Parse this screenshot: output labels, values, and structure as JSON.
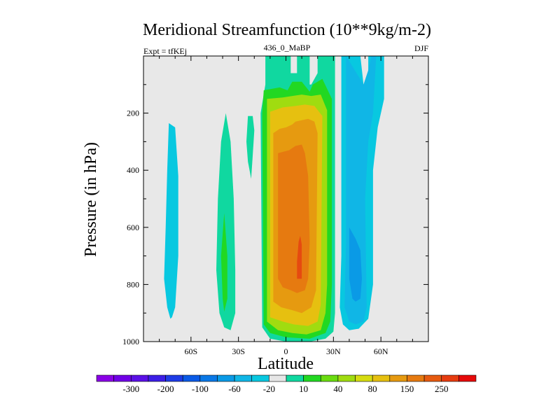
{
  "chart_data": {
    "type": "heatmap",
    "title": "Meridional Streamfunction (10**9kg/m-2)",
    "subtitle_left": "Expt = tfKEj",
    "subtitle_center": "436_0_MaBP",
    "subtitle_right": "DJF",
    "xlabel": "Latitude",
    "ylabel": "Pressure (in hPa)",
    "xlim": [
      -90,
      90
    ],
    "ylim": [
      1000,
      0
    ],
    "x_ticks": [
      {
        "value": -60,
        "label": "60S"
      },
      {
        "value": -30,
        "label": "30S"
      },
      {
        "value": 0,
        "label": "0"
      },
      {
        "value": 30,
        "label": "30N"
      },
      {
        "value": 60,
        "label": "60N"
      }
    ],
    "y_ticks": [
      {
        "value": 200,
        "label": "200"
      },
      {
        "value": 400,
        "label": "400"
      },
      {
        "value": 600,
        "label": "600"
      },
      {
        "value": 800,
        "label": "800"
      },
      {
        "value": 1000,
        "label": "1000"
      }
    ],
    "background_color": "#e8e8e8",
    "colorbar": {
      "colors": [
        "#8a00e6",
        "#7000e6",
        "#5a10e6",
        "#3c1ee6",
        "#1e3ce6",
        "#0a5ae6",
        "#0a78e6",
        "#0a9ae6",
        "#10b6e6",
        "#08c8e0",
        "#e6e6e6",
        "#10d8a0",
        "#22d822",
        "#6adc10",
        "#a0dc10",
        "#d6dc10",
        "#e6c010",
        "#e69a10",
        "#e67a10",
        "#e65a10",
        "#e63c10",
        "#e60a0a"
      ],
      "labels": [
        {
          "after_index": 1,
          "label": "-300"
        },
        {
          "after_index": 3,
          "label": "-200"
        },
        {
          "after_index": 5,
          "label": "-100"
        },
        {
          "after_index": 7,
          "label": "-60"
        },
        {
          "after_index": 9,
          "label": "-20"
        },
        {
          "after_index": 11,
          "label": "10"
        },
        {
          "after_index": 13,
          "label": "40"
        },
        {
          "after_index": 15,
          "label": "80"
        },
        {
          "after_index": 17,
          "label": "150"
        },
        {
          "after_index": 19,
          "label": "250"
        }
      ]
    },
    "contour_regions": [
      {
        "name": "sh-high-lat-cell",
        "color": "#08c8e0",
        "points": [
          [
            -74,
            235
          ],
          [
            -70,
            250
          ],
          [
            -68,
            420
          ],
          [
            -68,
            700
          ],
          [
            -70,
            880
          ],
          [
            -72,
            915
          ],
          [
            -73,
            920
          ],
          [
            -75,
            880
          ],
          [
            -77,
            780
          ],
          [
            -76,
            600
          ],
          [
            -75,
            400
          ]
        ]
      },
      {
        "name": "sh-mid-lat-cell-outer",
        "color": "#10d8a0",
        "points": [
          [
            -38,
            200
          ],
          [
            -35,
            300
          ],
          [
            -33,
            500
          ],
          [
            -32,
            750
          ],
          [
            -32,
            900
          ],
          [
            -35,
            960
          ],
          [
            -39,
            950
          ],
          [
            -42,
            900
          ],
          [
            -44,
            750
          ],
          [
            -43,
            500
          ],
          [
            -41,
            300
          ]
        ]
      },
      {
        "name": "sh-mid-lat-cell-inner",
        "color": "#22d822",
        "points": [
          [
            -39,
            550
          ],
          [
            -37,
            700
          ],
          [
            -37,
            850
          ],
          [
            -39,
            895
          ],
          [
            -40,
            850
          ],
          [
            -41,
            700
          ]
        ]
      },
      {
        "name": "sh-small-upper-cell",
        "color": "#10d8a0",
        "points": [
          [
            -24,
            210
          ],
          [
            -21,
            210
          ],
          [
            -20,
            260
          ],
          [
            -21,
            350
          ],
          [
            -22,
            430
          ],
          [
            -24,
            370
          ],
          [
            -25,
            300
          ]
        ]
      },
      {
        "name": "hadley-outer",
        "color": "#10d8a0",
        "points": [
          [
            -13,
            0
          ],
          [
            -13,
            100
          ],
          [
            -16,
            200
          ],
          [
            -15,
            950
          ],
          [
            -10,
            990
          ],
          [
            0,
            1000
          ],
          [
            15,
            1000
          ],
          [
            25,
            990
          ],
          [
            30,
            965
          ],
          [
            31,
            900
          ],
          [
            31,
            0
          ],
          [
            20,
            0
          ],
          [
            20,
            60
          ],
          [
            16,
            100
          ],
          [
            15,
            100
          ],
          [
            15,
            0
          ],
          [
            7,
            0
          ],
          [
            7,
            60
          ],
          [
            3,
            60
          ],
          [
            3,
            0
          ]
        ]
      },
      {
        "name": "hadley-40",
        "color": "#22d822",
        "points": [
          [
            -14,
            120
          ],
          [
            -15,
            200
          ],
          [
            -14,
            940
          ],
          [
            -10,
            970
          ],
          [
            0,
            985
          ],
          [
            15,
            990
          ],
          [
            25,
            970
          ],
          [
            28,
            930
          ],
          [
            29,
            800
          ],
          [
            29,
            150
          ],
          [
            23,
            80
          ],
          [
            17,
            100
          ],
          [
            15,
            125
          ],
          [
            10,
            90
          ],
          [
            4,
            90
          ],
          [
            1,
            120
          ],
          [
            -4,
            110
          ]
        ]
      },
      {
        "name": "hadley-80",
        "color": "#a0dc10",
        "points": [
          [
            -12,
            150
          ],
          [
            -12,
            930
          ],
          [
            -5,
            960
          ],
          [
            4,
            970
          ],
          [
            13,
            975
          ],
          [
            22,
            960
          ],
          [
            25,
            900
          ],
          [
            26,
            800
          ],
          [
            26,
            190
          ],
          [
            22,
            135
          ],
          [
            16,
            140
          ],
          [
            10,
            135
          ],
          [
            4,
            140
          ],
          [
            -2,
            145
          ]
        ]
      },
      {
        "name": "hadley-150",
        "color": "#e6c010",
        "points": [
          [
            -10,
            195
          ],
          [
            -10,
            915
          ],
          [
            -2,
            930
          ],
          [
            5,
            940
          ],
          [
            14,
            945
          ],
          [
            20,
            930
          ],
          [
            22,
            870
          ],
          [
            23,
            210
          ],
          [
            18,
            175
          ],
          [
            12,
            170
          ],
          [
            6,
            175
          ],
          [
            -2,
            180
          ]
        ]
      },
      {
        "name": "hadley-250",
        "color": "#e69a10",
        "points": [
          [
            -8,
            270
          ],
          [
            -8,
            860
          ],
          [
            -3,
            880
          ],
          [
            4,
            890
          ],
          [
            10,
            900
          ],
          [
            16,
            880
          ],
          [
            19,
            820
          ],
          [
            20,
            270
          ],
          [
            18,
            230
          ],
          [
            14,
            220
          ],
          [
            10,
            225
          ],
          [
            6,
            230
          ],
          [
            4,
            240
          ],
          [
            0,
            250
          ],
          [
            -4,
            255
          ]
        ]
      },
      {
        "name": "hadley-300",
        "color": "#e67a10",
        "points": [
          [
            -5,
            340
          ],
          [
            -5,
            780
          ],
          [
            -2,
            810
          ],
          [
            3,
            820
          ],
          [
            7,
            830
          ],
          [
            12,
            820
          ],
          [
            14,
            780
          ],
          [
            15,
            650
          ],
          [
            14,
            420
          ],
          [
            12,
            340
          ],
          [
            10,
            310
          ],
          [
            6,
            315
          ],
          [
            2,
            330
          ]
        ]
      },
      {
        "name": "hadley-core",
        "color": "#e64a10",
        "points": [
          [
            8,
            650
          ],
          [
            7,
            720
          ],
          [
            7,
            780
          ],
          [
            10,
            780
          ],
          [
            10,
            660
          ],
          [
            9,
            630
          ]
        ]
      },
      {
        "name": "nh-ferrel-outer",
        "color": "#08c8e0",
        "points": [
          [
            35,
            0
          ],
          [
            35,
            700
          ],
          [
            34,
            880
          ],
          [
            36,
            940
          ],
          [
            40,
            960
          ],
          [
            46,
            955
          ],
          [
            52,
            920
          ],
          [
            55,
            800
          ],
          [
            55,
            400
          ],
          [
            58,
            250
          ],
          [
            62,
            150
          ],
          [
            62,
            0
          ],
          [
            52,
            0
          ],
          [
            52,
            100
          ],
          [
            50,
            150
          ],
          [
            47,
            0
          ]
        ]
      },
      {
        "name": "nh-ferrel-inner",
        "color": "#10b6e6",
        "points": [
          [
            38,
            0
          ],
          [
            38,
            650
          ],
          [
            37,
            880
          ],
          [
            40,
            930
          ],
          [
            44,
            940
          ],
          [
            49,
            930
          ],
          [
            51,
            880
          ],
          [
            50,
            500
          ],
          [
            52,
            300
          ],
          [
            55,
            200
          ],
          [
            57,
            0
          ],
          [
            54,
            0
          ],
          [
            52,
            50
          ],
          [
            49,
            100
          ]
        ]
      },
      {
        "name": "nh-ferrel-core",
        "color": "#0a9ae6",
        "points": [
          [
            40,
            600
          ],
          [
            40,
            780
          ],
          [
            42,
            850
          ],
          [
            44,
            860
          ],
          [
            47,
            850
          ],
          [
            48,
            780
          ],
          [
            47,
            680
          ],
          [
            44,
            640
          ],
          [
            42,
            620
          ]
        ]
      }
    ]
  }
}
